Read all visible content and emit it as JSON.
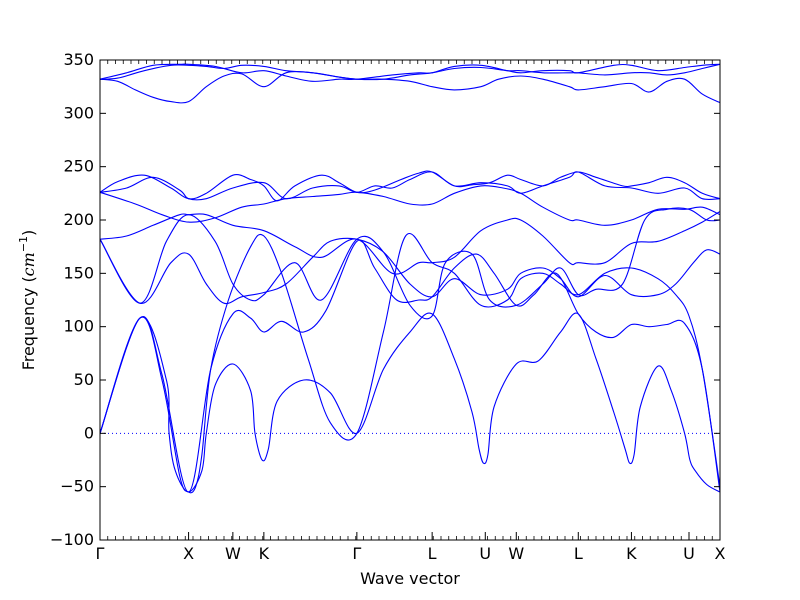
{
  "chart_data": {
    "type": "line",
    "title": "",
    "xlabel": "Wave vector",
    "ylabel_parts": [
      "Frequency (",
      "cm",
      "−1",
      ")"
    ],
    "ylim": [
      -100,
      350
    ],
    "yticks": [
      -100,
      -50,
      0,
      50,
      100,
      150,
      200,
      250,
      300,
      350
    ],
    "ytick_labels": [
      "−100",
      "−50",
      "0",
      "50",
      "100",
      "150",
      "200",
      "250",
      "300",
      "350"
    ],
    "xlim": [
      0,
      7.0
    ],
    "high_symmetry_points": [
      {
        "label": "Γ",
        "x": 0.0
      },
      {
        "label": "X",
        "x": 1.0
      },
      {
        "label": "W",
        "x": 1.5
      },
      {
        "label": "K",
        "x": 1.85
      },
      {
        "label": "Γ",
        "x": 2.9
      },
      {
        "label": "L",
        "x": 3.75
      },
      {
        "label": "U",
        "x": 4.35
      },
      {
        "label": "W",
        "x": 4.7
      },
      {
        "label": "L",
        "x": 5.4
      },
      {
        "label": "K",
        "x": 6.0
      },
      {
        "label": "U",
        "x": 6.65
      },
      {
        "label": "X",
        "x": 7.0
      }
    ],
    "zero_line": {
      "y": 0,
      "style": "dotted",
      "color": "#0000ff"
    },
    "series_color": "#0000ff",
    "series": [
      {
        "x": [
          0,
          0.45,
          0.75,
          0.78,
          0.85,
          1.0,
          1.15,
          1.2,
          1.3,
          1.5,
          1.7,
          1.75,
          1.83,
          1.9,
          2.0,
          2.3,
          2.6,
          2.9,
          3.2,
          3.5,
          3.75,
          4.0,
          4.2,
          4.28,
          4.33,
          4.38,
          4.45,
          4.7,
          4.95,
          5.2,
          5.4,
          5.6,
          5.8,
          5.93,
          5.98,
          6.03,
          6.1,
          6.3,
          6.45,
          6.6,
          6.66,
          6.72,
          6.85,
          7.0
        ],
        "y": [
          0,
          108,
          50,
          0,
          -35,
          -55,
          -35,
          0,
          45,
          65,
          40,
          0,
          -25,
          -15,
          30,
          50,
          38,
          0,
          60,
          95,
          112,
          70,
          20,
          -15,
          -28,
          -20,
          25,
          65,
          68,
          95,
          112,
          70,
          20,
          -15,
          -28,
          -20,
          25,
          63,
          40,
          0,
          -25,
          -35,
          -48,
          -55
        ]
      },
      {
        "x": [
          0,
          0.45,
          0.7,
          0.9,
          1.0,
          1.08,
          1.15,
          1.25,
          1.45,
          1.7,
          1.85,
          2.05,
          2.35,
          2.6,
          2.9,
          3.2,
          3.45,
          3.75,
          4.0,
          4.3,
          4.6,
          4.75,
          5.0,
          5.2,
          5.4,
          5.7,
          6.0,
          6.3,
          6.5,
          6.65,
          6.8,
          7.0
        ],
        "y": [
          0,
          108,
          50,
          -40,
          -55,
          -50,
          -20,
          60,
          125,
          175,
          185,
          150,
          70,
          10,
          0,
          95,
          185,
          160,
          150,
          120,
          125,
          145,
          150,
          140,
          130,
          150,
          155,
          145,
          130,
          110,
          60,
          -50
        ]
      },
      {
        "x": [
          0,
          0.45,
          0.7,
          1.0,
          1.25,
          1.5,
          1.7,
          1.85,
          2.05,
          2.3,
          2.55,
          2.9,
          3.1,
          3.35,
          3.6,
          3.75,
          4.0,
          4.25,
          4.45,
          4.7,
          4.9,
          5.15,
          5.4,
          5.6,
          5.8,
          6.0,
          6.2,
          6.4,
          6.6,
          6.8,
          7.0
        ],
        "y": [
          0,
          108,
          55,
          -55,
          60,
          112,
          108,
          95,
          105,
          95,
          115,
          180,
          155,
          125,
          125,
          128,
          155,
          168,
          150,
          120,
          130,
          150,
          112,
          95,
          90,
          102,
          100,
          102,
          103,
          60,
          -55
        ]
      },
      {
        "x": [
          0,
          0.45,
          0.8,
          1.0,
          1.2,
          1.4,
          1.6,
          1.85,
          2.1,
          2.4,
          2.6,
          2.9,
          3.2,
          3.5,
          3.75,
          4.0,
          4.3,
          4.6,
          4.75,
          5.0,
          5.2,
          5.4,
          5.7,
          6.0,
          6.3,
          6.5,
          6.7,
          6.85,
          7.0
        ],
        "y": [
          182,
          122,
          160,
          168,
          140,
          122,
          128,
          132,
          140,
          165,
          180,
          182,
          170,
          140,
          128,
          145,
          130,
          135,
          150,
          155,
          145,
          128,
          148,
          130,
          130,
          140,
          160,
          172,
          168
        ]
      },
      {
        "x": [
          0,
          0.45,
          0.75,
          1.0,
          1.3,
          1.5,
          1.7,
          1.85,
          2.2,
          2.5,
          2.9,
          3.2,
          3.5,
          3.75,
          3.9,
          4.2,
          4.4,
          4.7,
          5.0,
          5.2,
          5.4,
          5.6,
          5.9,
          6.15,
          6.4,
          6.65,
          6.85,
          7.0
        ],
        "y": [
          182,
          122,
          180,
          205,
          180,
          140,
          125,
          130,
          160,
          125,
          182,
          170,
          120,
          110,
          160,
          168,
          125,
          120,
          140,
          155,
          130,
          135,
          140,
          200,
          210,
          210,
          200,
          200
        ]
      },
      {
        "x": [
          0,
          0.3,
          0.6,
          0.9,
          1.0,
          1.2,
          1.5,
          1.85,
          2.2,
          2.5,
          2.9,
          3.3,
          3.6,
          3.75,
          4.0,
          4.3,
          4.6,
          4.75,
          5.0,
          5.3,
          5.4,
          5.7,
          6.0,
          6.3,
          6.6,
          6.8,
          7.0
        ],
        "y": [
          182,
          185,
          195,
          205,
          205,
          205,
          195,
          190,
          175,
          165,
          182,
          150,
          160,
          160,
          165,
          190,
          200,
          200,
          185,
          160,
          160,
          160,
          178,
          180,
          190,
          198,
          208
        ]
      },
      {
        "x": [
          0,
          0.4,
          0.7,
          1.0,
          1.3,
          1.6,
          1.85,
          2.1,
          2.4,
          2.7,
          2.9,
          3.2,
          3.5,
          3.75,
          4.0,
          4.3,
          4.55,
          4.75,
          5.0,
          5.3,
          5.4,
          5.7,
          6.0,
          6.3,
          6.6,
          6.8,
          7.0
        ],
        "y": [
          226,
          215,
          205,
          198,
          202,
          212,
          215,
          220,
          222,
          224,
          226,
          222,
          215,
          215,
          225,
          232,
          230,
          225,
          212,
          200,
          200,
          195,
          200,
          210,
          210,
          212,
          205
        ]
      },
      {
        "x": [
          0,
          0.3,
          0.6,
          0.9,
          1.0,
          1.2,
          1.5,
          1.85,
          2.1,
          2.4,
          2.7,
          2.9,
          3.1,
          3.3,
          3.5,
          3.75,
          4.0,
          4.3,
          4.6,
          4.75,
          5.0,
          5.3,
          5.4,
          5.7,
          6.0,
          6.3,
          6.6,
          6.8,
          7.0
        ],
        "y": [
          226,
          230,
          240,
          228,
          220,
          220,
          230,
          235,
          220,
          230,
          232,
          226,
          232,
          230,
          238,
          245,
          232,
          235,
          232,
          225,
          232,
          240,
          245,
          232,
          230,
          225,
          230,
          220,
          220
        ]
      },
      {
        "x": [
          0,
          0.2,
          0.5,
          0.8,
          1.0,
          1.2,
          1.5,
          1.7,
          1.85,
          2.0,
          2.2,
          2.5,
          2.7,
          2.9,
          3.1,
          3.4,
          3.6,
          3.75,
          4.0,
          4.2,
          4.4,
          4.6,
          4.75,
          5.0,
          5.2,
          5.4,
          5.6,
          5.9,
          6.0,
          6.2,
          6.4,
          6.6,
          6.8,
          7.0
        ],
        "y": [
          226,
          236,
          242,
          230,
          220,
          225,
          242,
          238,
          232,
          218,
          232,
          242,
          235,
          226,
          228,
          238,
          244,
          245,
          232,
          233,
          235,
          242,
          238,
          232,
          240,
          245,
          240,
          232,
          232,
          235,
          240,
          235,
          225,
          220
        ]
      },
      {
        "x": [
          0,
          0.3,
          0.6,
          0.9,
          1.0,
          1.3,
          1.6,
          1.85,
          2.1,
          2.4,
          2.7,
          2.9,
          3.3,
          3.6,
          3.75,
          4.0,
          4.3,
          4.6,
          4.75,
          5.0,
          5.3,
          5.4,
          5.8,
          6.0,
          6.3,
          6.6,
          6.8,
          7.0
        ],
        "y": [
          332,
          338,
          345,
          346,
          346,
          344,
          338,
          340,
          335,
          330,
          332,
          332,
          336,
          338,
          338,
          344,
          345,
          340,
          338,
          340,
          340,
          338,
          345,
          345,
          340,
          343,
          345,
          346
        ]
      },
      {
        "x": [
          0,
          0.2,
          0.5,
          0.8,
          1.0,
          1.2,
          1.4,
          1.6,
          1.85,
          2.1,
          2.4,
          2.7,
          2.9,
          3.2,
          3.5,
          3.75,
          4.0,
          4.3,
          4.6,
          4.75,
          5.0,
          5.3,
          5.4,
          5.7,
          6.0,
          6.2,
          6.4,
          6.6,
          6.8,
          7.0
        ],
        "y": [
          332,
          333,
          340,
          345,
          345,
          344,
          342,
          345,
          344,
          340,
          338,
          334,
          332,
          332,
          336,
          338,
          342,
          343,
          340,
          340,
          338,
          338,
          338,
          336,
          338,
          338,
          336,
          338,
          342,
          346
        ]
      },
      {
        "x": [
          0,
          0.2,
          0.4,
          0.6,
          0.8,
          1.0,
          1.2,
          1.4,
          1.6,
          1.85,
          2.1,
          2.4,
          2.7,
          2.9,
          3.2,
          3.5,
          3.75,
          4.0,
          4.3,
          4.5,
          4.75,
          5.0,
          5.3,
          5.4,
          5.7,
          6.0,
          6.2,
          6.4,
          6.6,
          6.8,
          7.0
        ],
        "y": [
          332,
          330,
          322,
          315,
          311,
          311,
          325,
          335,
          337,
          325,
          338,
          338,
          334,
          332,
          332,
          330,
          325,
          322,
          325,
          332,
          335,
          332,
          325,
          322,
          325,
          328,
          320,
          330,
          332,
          318,
          310
        ]
      }
    ]
  }
}
